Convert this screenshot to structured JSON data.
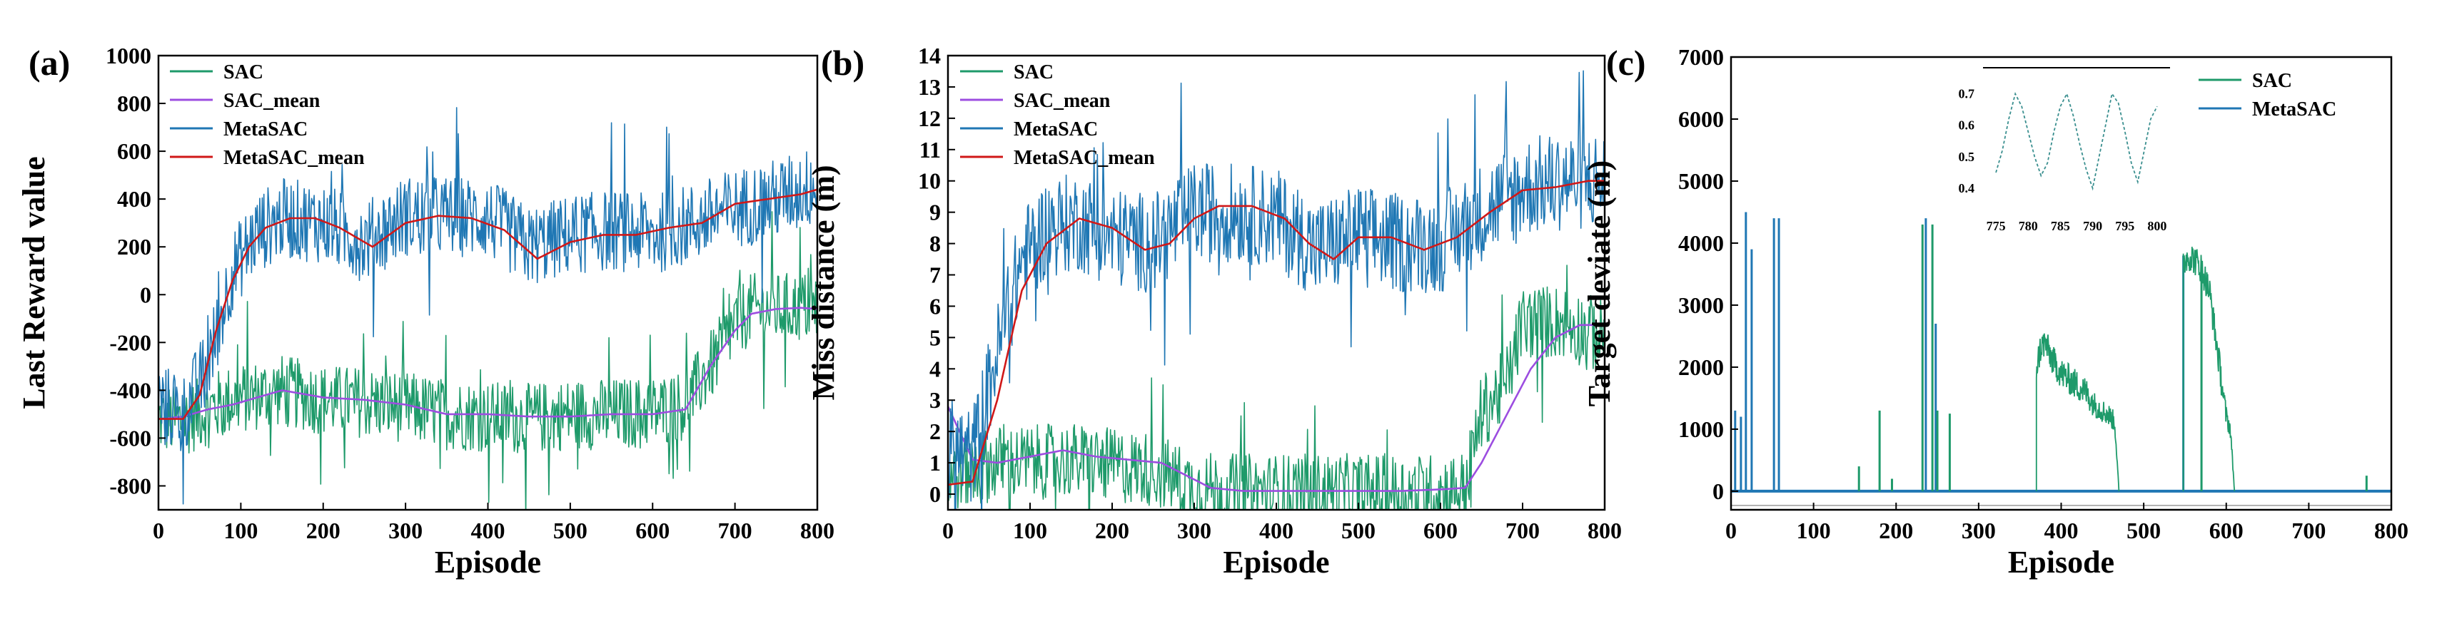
{
  "chart_data": [
    {
      "type": "line",
      "panel_label": "(a)",
      "xlabel": "Episode",
      "ylabel": "Last Reward value",
      "xlim": [
        0,
        800
      ],
      "ylim": [
        -900,
        1000
      ],
      "xticks": [
        0,
        100,
        200,
        300,
        400,
        500,
        600,
        700,
        800
      ],
      "yticks": [
        -800,
        -600,
        -400,
        -200,
        0,
        200,
        400,
        600,
        800,
        1000
      ],
      "legend_position": "top-left",
      "series": [
        {
          "name": "SAC",
          "color": "#1e9a6a",
          "kind": "noisy",
          "x": [
            0,
            30,
            60,
            90,
            120,
            150,
            200,
            250,
            300,
            350,
            400,
            450,
            500,
            550,
            600,
            640,
            680,
            700,
            720,
            750,
            780,
            800
          ],
          "values": [
            -520,
            -530,
            -480,
            -440,
            -420,
            -400,
            -440,
            -450,
            -470,
            -500,
            -510,
            -520,
            -500,
            -500,
            -490,
            -460,
            -250,
            -120,
            -60,
            -60,
            -50,
            -60
          ],
          "noise": 150
        },
        {
          "name": "SAC_mean",
          "color": "#9c4de0",
          "kind": "smooth",
          "x": [
            0,
            30,
            60,
            90,
            120,
            150,
            200,
            250,
            300,
            350,
            400,
            450,
            500,
            550,
            600,
            640,
            670,
            700,
            720,
            750,
            780,
            800
          ],
          "values": [
            -520,
            -510,
            -480,
            -460,
            -430,
            -400,
            -430,
            -440,
            -460,
            -500,
            -500,
            -510,
            -510,
            -500,
            -500,
            -480,
            -300,
            -150,
            -80,
            -60,
            -55,
            -60
          ]
        },
        {
          "name": "MetaSAC",
          "color": "#1f77b4",
          "kind": "noisy",
          "x": [
            0,
            30,
            60,
            90,
            120,
            150,
            200,
            250,
            300,
            350,
            400,
            450,
            500,
            550,
            600,
            650,
            700,
            750,
            800
          ],
          "values": [
            -450,
            -500,
            -300,
            100,
            260,
            320,
            300,
            220,
            330,
            330,
            320,
            200,
            250,
            270,
            250,
            300,
            360,
            400,
            460
          ],
          "noise": 170
        },
        {
          "name": "MetaSAC_mean",
          "color": "#d01818",
          "kind": "smooth",
          "x": [
            0,
            30,
            50,
            70,
            90,
            110,
            130,
            160,
            190,
            220,
            260,
            300,
            340,
            380,
            420,
            460,
            500,
            540,
            580,
            620,
            660,
            700,
            740,
            780,
            800
          ],
          "values": [
            -520,
            -520,
            -420,
            -150,
            60,
            200,
            280,
            320,
            320,
            280,
            200,
            300,
            330,
            320,
            270,
            150,
            220,
            250,
            250,
            280,
            300,
            380,
            400,
            420,
            440
          ]
        }
      ]
    },
    {
      "type": "line",
      "panel_label": "(b)",
      "xlabel": "Episode",
      "ylabel": "Miss distance (m)",
      "xlim": [
        0,
        800
      ],
      "ylim": [
        -0.5,
        14
      ],
      "xticks": [
        0,
        100,
        200,
        300,
        400,
        500,
        600,
        700,
        800
      ],
      "yticks": [
        0,
        1,
        2,
        3,
        4,
        5,
        6,
        7,
        8,
        9,
        10,
        11,
        12,
        13,
        14
      ],
      "legend_position": "top-left",
      "series": [
        {
          "name": "SAC",
          "color": "#1e9a6a",
          "kind": "noisy",
          "x": [
            0,
            30,
            60,
            100,
            150,
            200,
            250,
            300,
            350,
            400,
            450,
            500,
            550,
            600,
            630,
            650,
            680,
            700,
            750,
            800
          ],
          "values": [
            0.6,
            0.8,
            1.0,
            1.0,
            1.1,
            0.9,
            0.8,
            0.2,
            0.1,
            0.1,
            0.1,
            0.1,
            0.1,
            0.1,
            0.2,
            2.6,
            3.5,
            5.5,
            5.5,
            5.0
          ],
          "noise": 1.2
        },
        {
          "name": "SAC_mean",
          "color": "#9c4de0",
          "kind": "smooth",
          "x": [
            0,
            30,
            60,
            100,
            140,
            180,
            220,
            260,
            290,
            320,
            360,
            400,
            450,
            500,
            550,
            600,
            630,
            650,
            680,
            710,
            740,
            770,
            800
          ],
          "values": [
            2.8,
            1.1,
            1.0,
            1.2,
            1.4,
            1.2,
            1.1,
            1.0,
            0.6,
            0.2,
            0.1,
            0.1,
            0.1,
            0.1,
            0.1,
            0.15,
            0.2,
            1.0,
            2.5,
            4.0,
            5.0,
            5.4,
            5.4
          ]
        },
        {
          "name": "MetaSAC",
          "color": "#1f77b4",
          "kind": "noisy",
          "x": [
            0,
            30,
            60,
            90,
            120,
            160,
            200,
            250,
            300,
            350,
            400,
            450,
            500,
            550,
            600,
            650,
            700,
            750,
            800
          ],
          "values": [
            1.5,
            1.2,
            4.5,
            7.5,
            8.5,
            8.7,
            8.2,
            8.0,
            9.0,
            9.0,
            8.8,
            7.8,
            8.3,
            8.0,
            8.0,
            9.0,
            9.8,
            10.0,
            10.0
          ],
          "noise": 1.6
        },
        {
          "name": "MetaSAC_mean",
          "color": "#d01818",
          "kind": "smooth",
          "x": [
            0,
            30,
            60,
            90,
            120,
            160,
            200,
            240,
            270,
            300,
            330,
            370,
            410,
            440,
            470,
            500,
            540,
            580,
            620,
            660,
            700,
            740,
            780,
            800
          ],
          "values": [
            0.3,
            0.4,
            3.0,
            6.5,
            8.0,
            8.8,
            8.5,
            7.8,
            8.0,
            8.8,
            9.2,
            9.2,
            8.8,
            8.0,
            7.5,
            8.2,
            8.2,
            7.8,
            8.2,
            9.0,
            9.7,
            9.8,
            10.0,
            10.0
          ]
        }
      ]
    },
    {
      "type": "line",
      "panel_label": "(c)",
      "xlabel": "Episode",
      "ylabel": "Target deviate (m)",
      "xlim": [
        0,
        800
      ],
      "ylim": [
        -300,
        7000
      ],
      "xticks": [
        0,
        100,
        200,
        300,
        400,
        500,
        600,
        700,
        800
      ],
      "yticks": [
        0,
        1000,
        2000,
        3000,
        4000,
        5000,
        6000,
        7000
      ],
      "legend_position": "top-right",
      "series": [
        {
          "name": "SAC",
          "color": "#1e9a6a"
        },
        {
          "name": "MetaSAC",
          "color": "#1f77b4"
        }
      ],
      "spikes": {
        "sac": [
          [
            155,
            400
          ],
          [
            180,
            1300
          ],
          [
            195,
            200
          ],
          [
            232,
            4300
          ],
          [
            244,
            4300
          ],
          [
            250,
            1300
          ],
          [
            265,
            1250
          ],
          [
            570,
            3700
          ],
          [
            770,
            250
          ]
        ],
        "metasac": [
          [
            5,
            1300
          ],
          [
            12,
            1200
          ],
          [
            18,
            4500
          ],
          [
            25,
            3900
          ],
          [
            52,
            4400
          ],
          [
            58,
            4400
          ],
          [
            236,
            4400
          ],
          [
            248,
            2700
          ],
          [
            548,
            3800
          ]
        ]
      },
      "blocks": [
        {
          "color": "#1e9a6a",
          "x": [
            370,
            375,
            380,
            390,
            400,
            410,
            420,
            430,
            440,
            450,
            460,
            465,
            470
          ],
          "values": [
            2000,
            2300,
            2400,
            2100,
            1900,
            1800,
            1700,
            1600,
            1400,
            1300,
            1200,
            1100,
            0
          ]
        },
        {
          "color": "#1e9a6a",
          "x": [
            548,
            555,
            560,
            570,
            580,
            590,
            600,
            605,
            610
          ],
          "values": [
            3700,
            3800,
            3750,
            3600,
            3200,
            2200,
            1200,
            1000,
            0
          ]
        }
      ],
      "inset": {
        "xticks": [
          775,
          780,
          785,
          790,
          795,
          800
        ],
        "xtick_labels": [
          "775",
          "780",
          "785",
          "790",
          "795",
          "800"
        ],
        "ytick_labels": [
          "0.7",
          "0.6",
          "0.5",
          "0.4"
        ],
        "yticks": [
          0.7,
          0.6,
          0.5,
          0.4
        ],
        "xlim": [
          773,
          802
        ],
        "ylim": [
          0.33,
          0.76
        ],
        "values_x": [
          775,
          776,
          777,
          778,
          779,
          780,
          781,
          782,
          783,
          784,
          785,
          786,
          787,
          788,
          789,
          790,
          791,
          792,
          793,
          794,
          795,
          796,
          797,
          798,
          799,
          800
        ],
        "values_y": [
          0.45,
          0.52,
          0.62,
          0.7,
          0.66,
          0.58,
          0.5,
          0.44,
          0.48,
          0.58,
          0.66,
          0.7,
          0.63,
          0.54,
          0.46,
          0.4,
          0.5,
          0.6,
          0.7,
          0.67,
          0.58,
          0.48,
          0.42,
          0.52,
          0.62,
          0.66
        ]
      }
    }
  ]
}
